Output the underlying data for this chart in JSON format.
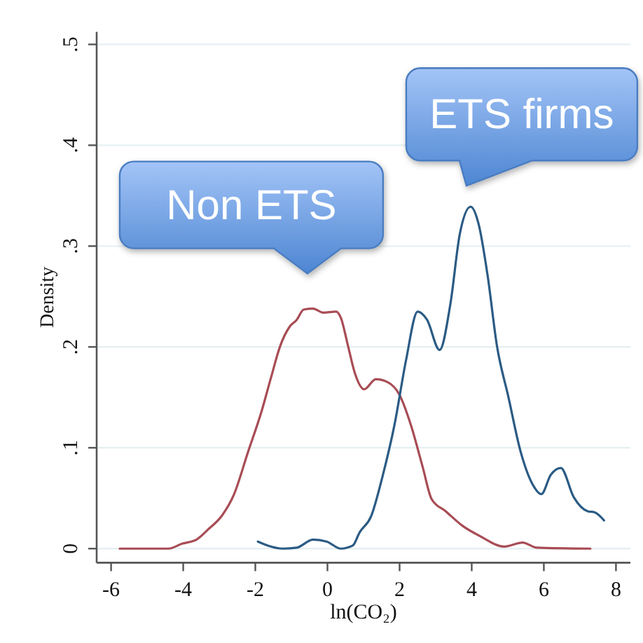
{
  "chart_data": {
    "type": "line",
    "xlabel": "ln(CO₂)",
    "ylabel": "Density",
    "xlim": [
      -6.4,
      8.4
    ],
    "ylim": [
      -0.014,
      0.5125
    ],
    "xticks": [
      -6,
      -4,
      -2,
      0,
      2,
      4,
      6,
      8
    ],
    "yticks": [
      0,
      {
        "value": 0.1,
        "label": ".1"
      },
      {
        "value": 0.2,
        "label": ".2"
      },
      {
        "value": 0.3,
        "label": ".3"
      },
      {
        "value": 0.4,
        "label": ".4"
      },
      {
        "value": 0.5,
        "label": ".5"
      }
    ],
    "grid": "y",
    "series": [
      {
        "name": "Non ETS",
        "color": "#a84c55",
        "x": [
          -5.76,
          -4.41,
          -4.02,
          -3.63,
          -3.31,
          -2.92,
          -2.6,
          -2.21,
          -1.82,
          -1.57,
          -1.31,
          -1.05,
          -0.85,
          -0.66,
          -0.4,
          -0.12,
          0.24,
          0.37,
          0.57,
          0.76,
          1.02,
          1.34,
          1.67,
          1.99,
          2.31,
          2.64,
          2.89,
          3.28,
          3.73,
          4.25,
          4.9,
          5.41,
          5.8,
          7.29
        ],
        "values": [
          0,
          0,
          0.005,
          0.009,
          0.019,
          0.033,
          0.053,
          0.095,
          0.137,
          0.169,
          0.201,
          0.22,
          0.227,
          0.237,
          0.238,
          0.234,
          0.235,
          0.229,
          0.201,
          0.174,
          0.158,
          0.168,
          0.165,
          0.153,
          0.123,
          0.081,
          0.049,
          0.037,
          0.023,
          0.012,
          0.002,
          0.006,
          0.001,
          0
        ]
      },
      {
        "name": "ETS firms",
        "color": "#2b5b84",
        "x": [
          -1.93,
          -1.24,
          -0.85,
          -0.4,
          -0.02,
          0.37,
          0.7,
          0.89,
          1.21,
          1.53,
          1.86,
          2.18,
          2.5,
          2.76,
          3.11,
          3.41,
          3.67,
          3.97,
          4.19,
          4.44,
          4.7,
          5.02,
          5.35,
          5.67,
          5.93,
          6.19,
          6.47,
          6.83,
          7.22,
          7.41,
          7.67
        ],
        "values": [
          0.007,
          0,
          0.001,
          0.009,
          0.007,
          0,
          0.003,
          0.016,
          0.032,
          0.072,
          0.123,
          0.187,
          0.235,
          0.227,
          0.197,
          0.243,
          0.312,
          0.339,
          0.322,
          0.271,
          0.201,
          0.15,
          0.097,
          0.065,
          0.054,
          0.073,
          0.08,
          0.051,
          0.037,
          0.036,
          0.028
        ]
      }
    ]
  }
}
